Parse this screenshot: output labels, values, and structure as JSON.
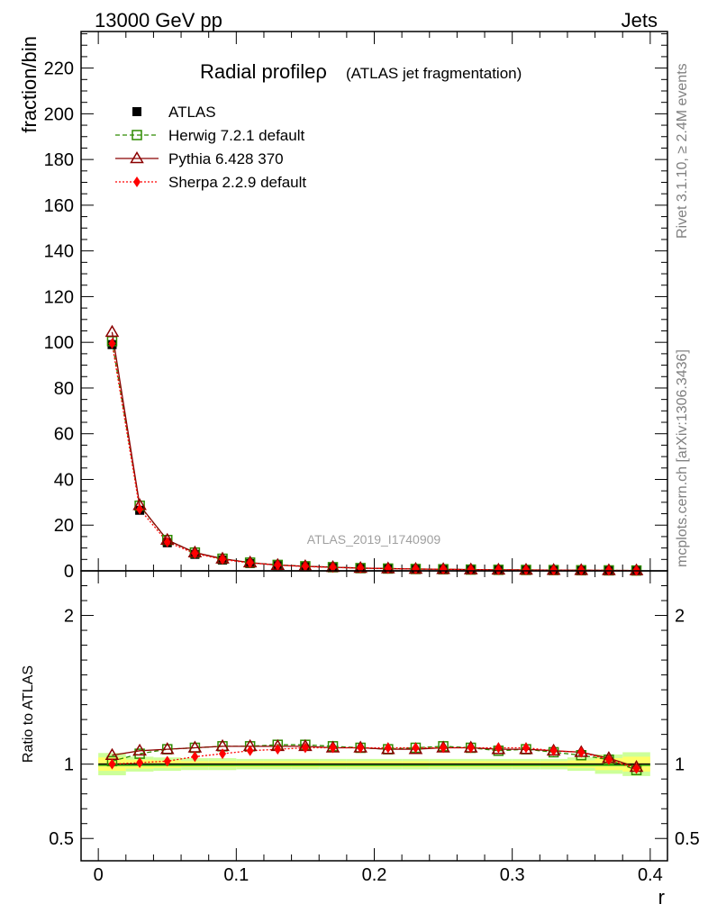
{
  "header": {
    "left": "13000 GeV pp",
    "right": "Jets"
  },
  "side_labels": {
    "rivet": "Rivet 3.1.10, ≥ 2.4M events",
    "mcplots": "mcplots.cern.ch [arXiv:1306.3436]"
  },
  "colors": {
    "atlas": "#000000",
    "herwig": "#2e8b00",
    "pythia": "#8b0000",
    "sherpa": "#ff0000",
    "band_inner": "#ffff66",
    "band_outer": "#ccff99",
    "ref_line": "#00aa00"
  },
  "chart_data": [
    {
      "type": "line",
      "panel": "main",
      "title_main": "Radial profileρ",
      "title_sub": "(ATLAS jet fragmentation)",
      "watermark": "ATLAS_2019_I1740909",
      "xlabel": "r",
      "ylabel": "fraction/bin",
      "xlim": [
        -0.0125,
        0.4125
      ],
      "ylim": [
        0,
        236
      ],
      "yticks": [
        0,
        20,
        40,
        60,
        80,
        100,
        120,
        140,
        160,
        180,
        200,
        220
      ],
      "x": [
        0.01,
        0.03,
        0.05,
        0.07,
        0.09,
        0.11,
        0.13,
        0.15,
        0.17,
        0.19,
        0.21,
        0.23,
        0.25,
        0.27,
        0.29,
        0.31,
        0.33,
        0.35,
        0.37,
        0.39
      ],
      "series": [
        {
          "name": "ATLAS",
          "key": "atlas",
          "values": [
            99.0,
            26.5,
            12.3,
            7.2,
            4.7,
            3.2,
            2.3,
            1.8,
            1.4,
            1.1,
            0.9,
            0.7,
            0.6,
            0.5,
            0.4,
            0.35,
            0.3,
            0.25,
            0.2,
            0.15
          ]
        },
        {
          "name": "Herwig 7.2.1 default",
          "key": "herwig",
          "values": [
            100.5,
            28.5,
            13.5,
            8.0,
            5.3,
            3.6,
            2.6,
            2.0,
            1.6,
            1.2,
            1.0,
            0.8,
            0.7,
            0.55,
            0.45,
            0.4,
            0.33,
            0.27,
            0.21,
            0.15
          ]
        },
        {
          "name": "Pythia 6.428 370",
          "key": "pythia",
          "values": [
            104.5,
            28.7,
            13.5,
            8.0,
            5.3,
            3.6,
            2.5,
            2.0,
            1.6,
            1.2,
            1.0,
            0.8,
            0.7,
            0.55,
            0.45,
            0.4,
            0.33,
            0.27,
            0.21,
            0.15
          ]
        },
        {
          "name": "Sherpa 2.2.9 default",
          "key": "sherpa",
          "values": [
            99.5,
            27.0,
            12.6,
            7.6,
            5.0,
            3.5,
            2.5,
            1.9,
            1.5,
            1.2,
            1.0,
            0.8,
            0.7,
            0.55,
            0.45,
            0.38,
            0.32,
            0.27,
            0.21,
            0.15
          ]
        }
      ]
    },
    {
      "type": "line",
      "panel": "ratio",
      "xlabel": "r",
      "ylabel": "Ratio to ATLAS",
      "xlim": [
        -0.0125,
        0.4125
      ],
      "ylim": [
        0.35,
        2.3
      ],
      "yticks": [
        0.5,
        1,
        2
      ],
      "ytick_labels": [
        "0.5",
        "1",
        "2"
      ],
      "xticks": [
        0,
        0.1,
        0.2,
        0.3,
        0.4
      ],
      "xtick_labels": [
        "0",
        "0.1",
        "0.2",
        "0.3",
        "0.4"
      ],
      "x": [
        0.01,
        0.03,
        0.05,
        0.07,
        0.09,
        0.11,
        0.13,
        0.15,
        0.17,
        0.19,
        0.21,
        0.23,
        0.25,
        0.27,
        0.29,
        0.31,
        0.33,
        0.35,
        0.37,
        0.39
      ],
      "band_inner": [
        0.045,
        0.03,
        0.025,
        0.02,
        0.02,
        0.02,
        0.02,
        0.02,
        0.02,
        0.02,
        0.02,
        0.02,
        0.02,
        0.02,
        0.02,
        0.02,
        0.02,
        0.025,
        0.04,
        0.05
      ],
      "band_outer": [
        0.075,
        0.05,
        0.045,
        0.04,
        0.04,
        0.035,
        0.035,
        0.035,
        0.035,
        0.035,
        0.035,
        0.035,
        0.035,
        0.035,
        0.035,
        0.035,
        0.035,
        0.045,
        0.065,
        0.08
      ],
      "series": [
        {
          "name": "Herwig 7.2.1 default",
          "key": "herwig",
          "values": [
            1.02,
            1.07,
            1.1,
            1.11,
            1.12,
            1.12,
            1.13,
            1.13,
            1.12,
            1.11,
            1.1,
            1.11,
            1.12,
            1.11,
            1.09,
            1.1,
            1.08,
            1.06,
            1.03,
            0.96
          ]
        },
        {
          "name": "Pythia 6.428 370",
          "key": "pythia",
          "values": [
            1.06,
            1.09,
            1.1,
            1.11,
            1.12,
            1.12,
            1.12,
            1.12,
            1.11,
            1.11,
            1.1,
            1.1,
            1.11,
            1.11,
            1.1,
            1.1,
            1.09,
            1.08,
            1.04,
            0.98
          ]
        },
        {
          "name": "Sherpa 2.2.9 default",
          "key": "sherpa",
          "values": [
            1.0,
            1.01,
            1.02,
            1.05,
            1.07,
            1.09,
            1.1,
            1.11,
            1.11,
            1.11,
            1.11,
            1.11,
            1.11,
            1.11,
            1.11,
            1.11,
            1.09,
            1.08,
            1.03,
            0.97
          ]
        }
      ]
    }
  ]
}
